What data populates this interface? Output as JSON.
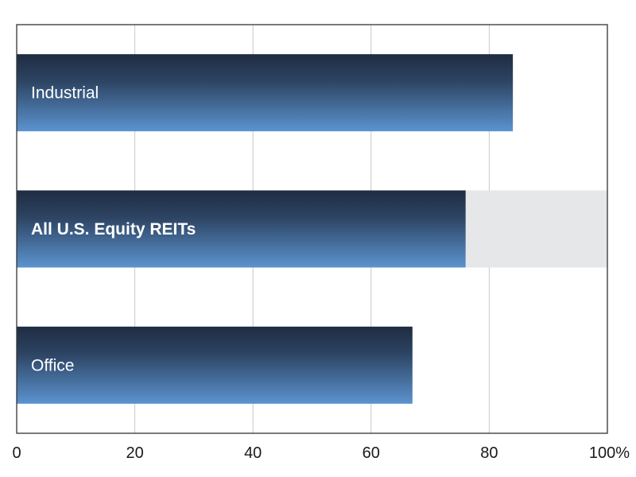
{
  "chart_data": {
    "type": "bar",
    "orientation": "horizontal",
    "title": "",
    "xlabel": "",
    "ylabel": "",
    "xlim": [
      0,
      100
    ],
    "x_ticks": [
      "0",
      "20",
      "40",
      "60",
      "80",
      "100%"
    ],
    "x_tick_values": [
      0,
      20,
      40,
      60,
      80,
      100
    ],
    "grid": "vertical",
    "categories": [
      "Industrial",
      "All U.S. Equity REITs",
      "Office"
    ],
    "values": [
      84,
      76,
      67
    ],
    "highlighted_category": "All U.S. Equity REITs",
    "colors": {
      "bar_top": "#1f2c42",
      "bar_bottom": "#5b93cf",
      "highlight_track": "#e6e7e8",
      "gridline": "#c8c8c8",
      "frame": "#333333"
    }
  }
}
